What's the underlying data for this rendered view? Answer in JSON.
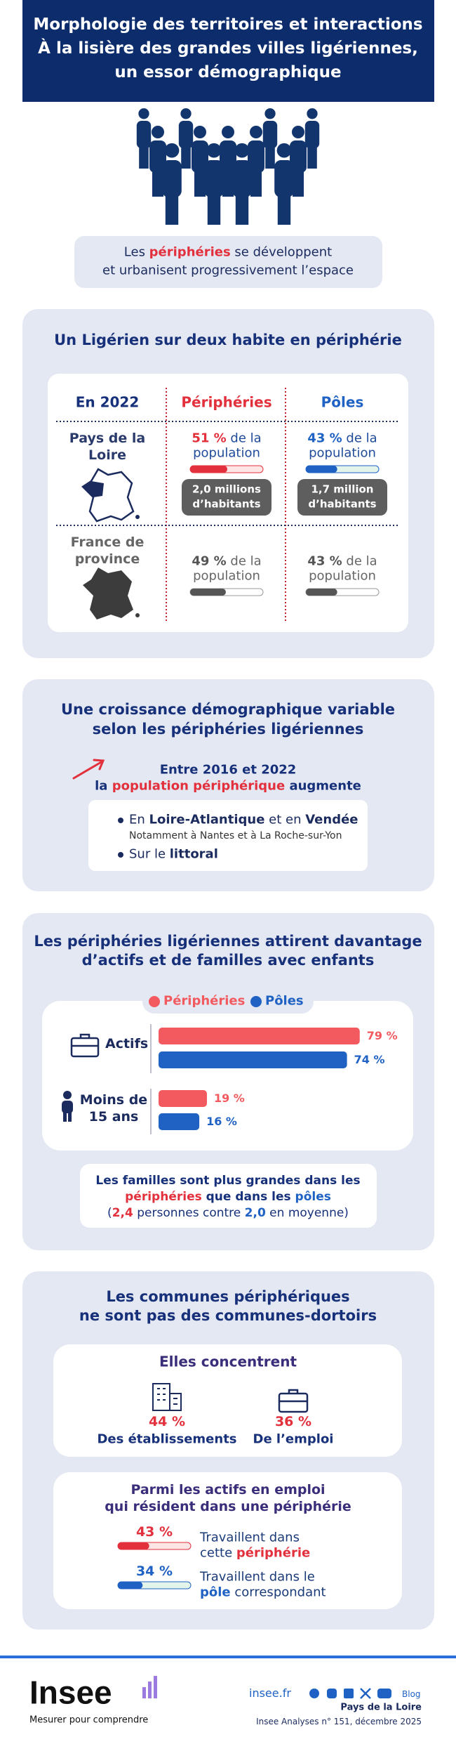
{
  "header": {
    "title_lines": [
      "Morphologie des territoires et interactions",
      "À la lisière des grandes villes ligériennes,",
      "un essor démographique"
    ]
  },
  "intro": {
    "lines": [
      [
        {
          "text": "Les "
        },
        {
          "text": "périphéries",
          "style": "red"
        },
        {
          "text": " se développent"
        }
      ],
      [
        {
          "text": "et urbanisent progressivement l’espace"
        }
      ]
    ]
  },
  "section1": {
    "title": "Un Ligérien sur deux habite en périphérie",
    "header": [
      "En 2022",
      "Périphéries",
      "Pôles"
    ],
    "rows": [
      {
        "label_lines": [
          "Pays de la",
          "Loire"
        ],
        "periph": {
          "value": 51,
          "label": "51 %",
          "text_lines": [
            "de la",
            "population"
          ],
          "count_lines": [
            "2,0 millions",
            "d’habitants"
          ]
        },
        "poles": {
          "value": 43,
          "label": "43 %",
          "text_lines": [
            "de la",
            "population"
          ],
          "count_lines": [
            "1,7 million",
            "d’habitants"
          ]
        }
      },
      {
        "label_lines": [
          "France de",
          "province"
        ],
        "periph": {
          "value": 49,
          "label": "49 %",
          "text_lines": [
            "de la",
            "population"
          ]
        },
        "poles": {
          "value": 43,
          "label": "43 %",
          "text_lines": [
            "de la",
            "population"
          ]
        }
      }
    ]
  },
  "section2": {
    "title_lines": [
      "Une croissance démographique variable",
      "selon les périphéries ligériennes"
    ],
    "lead_lines": [
      [
        {
          "text": "Entre 2016 et 2022"
        }
      ],
      [
        {
          "text": "la "
        },
        {
          "text": "population périphérique",
          "style": "red"
        },
        {
          "text": " augmente"
        }
      ]
    ],
    "bullets": [
      {
        "segments": [
          {
            "text": "En "
          },
          {
            "text": "Loire-Atlantique",
            "style": "bold"
          },
          {
            "text": " et en "
          },
          {
            "text": "Vendée",
            "style": "bold"
          }
        ],
        "note": "Notamment à Nantes et à La Roche-sur-Yon"
      },
      {
        "segments": [
          {
            "text": "Sur le "
          },
          {
            "text": "littoral",
            "style": "bold"
          }
        ]
      }
    ]
  },
  "section3": {
    "title_lines": [
      "Les périphéries ligériennes attirent davantage",
      "d’actifs et de familles avec enfants"
    ],
    "legend": [
      {
        "name": "Périphéries",
        "color": "#f25a5f"
      },
      {
        "name": "Pôles",
        "color": "#1f62c4"
      }
    ],
    "groups": [
      {
        "label_lines": [
          "Actifs"
        ],
        "values": [
          {
            "value": 79,
            "label": "79 %"
          },
          {
            "value": 74,
            "label": "74 %"
          }
        ]
      },
      {
        "label_lines": [
          "Moins de",
          "15 ans"
        ],
        "values": [
          {
            "value": 19,
            "label": "19 %"
          },
          {
            "value": 16,
            "label": "16 %"
          }
        ]
      }
    ],
    "note_lines": [
      [
        {
          "text": "Les familles sont plus grandes dans les"
        }
      ],
      [
        {
          "text": "périphéries",
          "style": "red"
        },
        {
          "text": " que dans les "
        },
        {
          "text": "pôles",
          "style": "blue"
        }
      ],
      [
        {
          "text": "("
        },
        {
          "text": "2,4",
          "style": "red"
        },
        {
          "text": " personnes contre "
        },
        {
          "text": "2,0",
          "style": "blue"
        },
        {
          "text": " en moyenne)"
        }
      ]
    ]
  },
  "section4": {
    "title_lines": [
      "Les communes périphériques",
      "ne sont pas des communes-dortoirs"
    ],
    "concentrate": {
      "title": "Elles concentrent",
      "items": [
        {
          "value": "44 %",
          "label": "Des établissements"
        },
        {
          "value": "36 %",
          "label": "De l’emploi"
        }
      ]
    },
    "actives": {
      "title_lines": [
        "Parmi les actifs en emploi",
        "qui résident dans une périphérie"
      ],
      "items": [
        {
          "value": 43,
          "label": "43 %",
          "lines": [
            [
              {
                "text": "Travaillent dans"
              }
            ],
            [
              {
                "text": "cette "
              },
              {
                "text": "périphérie",
                "style": "red"
              }
            ]
          ]
        },
        {
          "value": 34,
          "label": "34 %",
          "lines": [
            [
              {
                "text": "Travaillent dans le"
              }
            ],
            [
              {
                "text": "pôle",
                "style": "blue"
              },
              {
                "text": " correspondant"
              }
            ]
          ]
        }
      ]
    }
  },
  "footer": {
    "logo": "Insee",
    "tagline": "Mesurer pour comprendre",
    "site": "insee.fr",
    "blog": "Blog",
    "region": "Pays de la Loire",
    "reference": "Insee Analyses n° 151, décembre 2025"
  }
}
